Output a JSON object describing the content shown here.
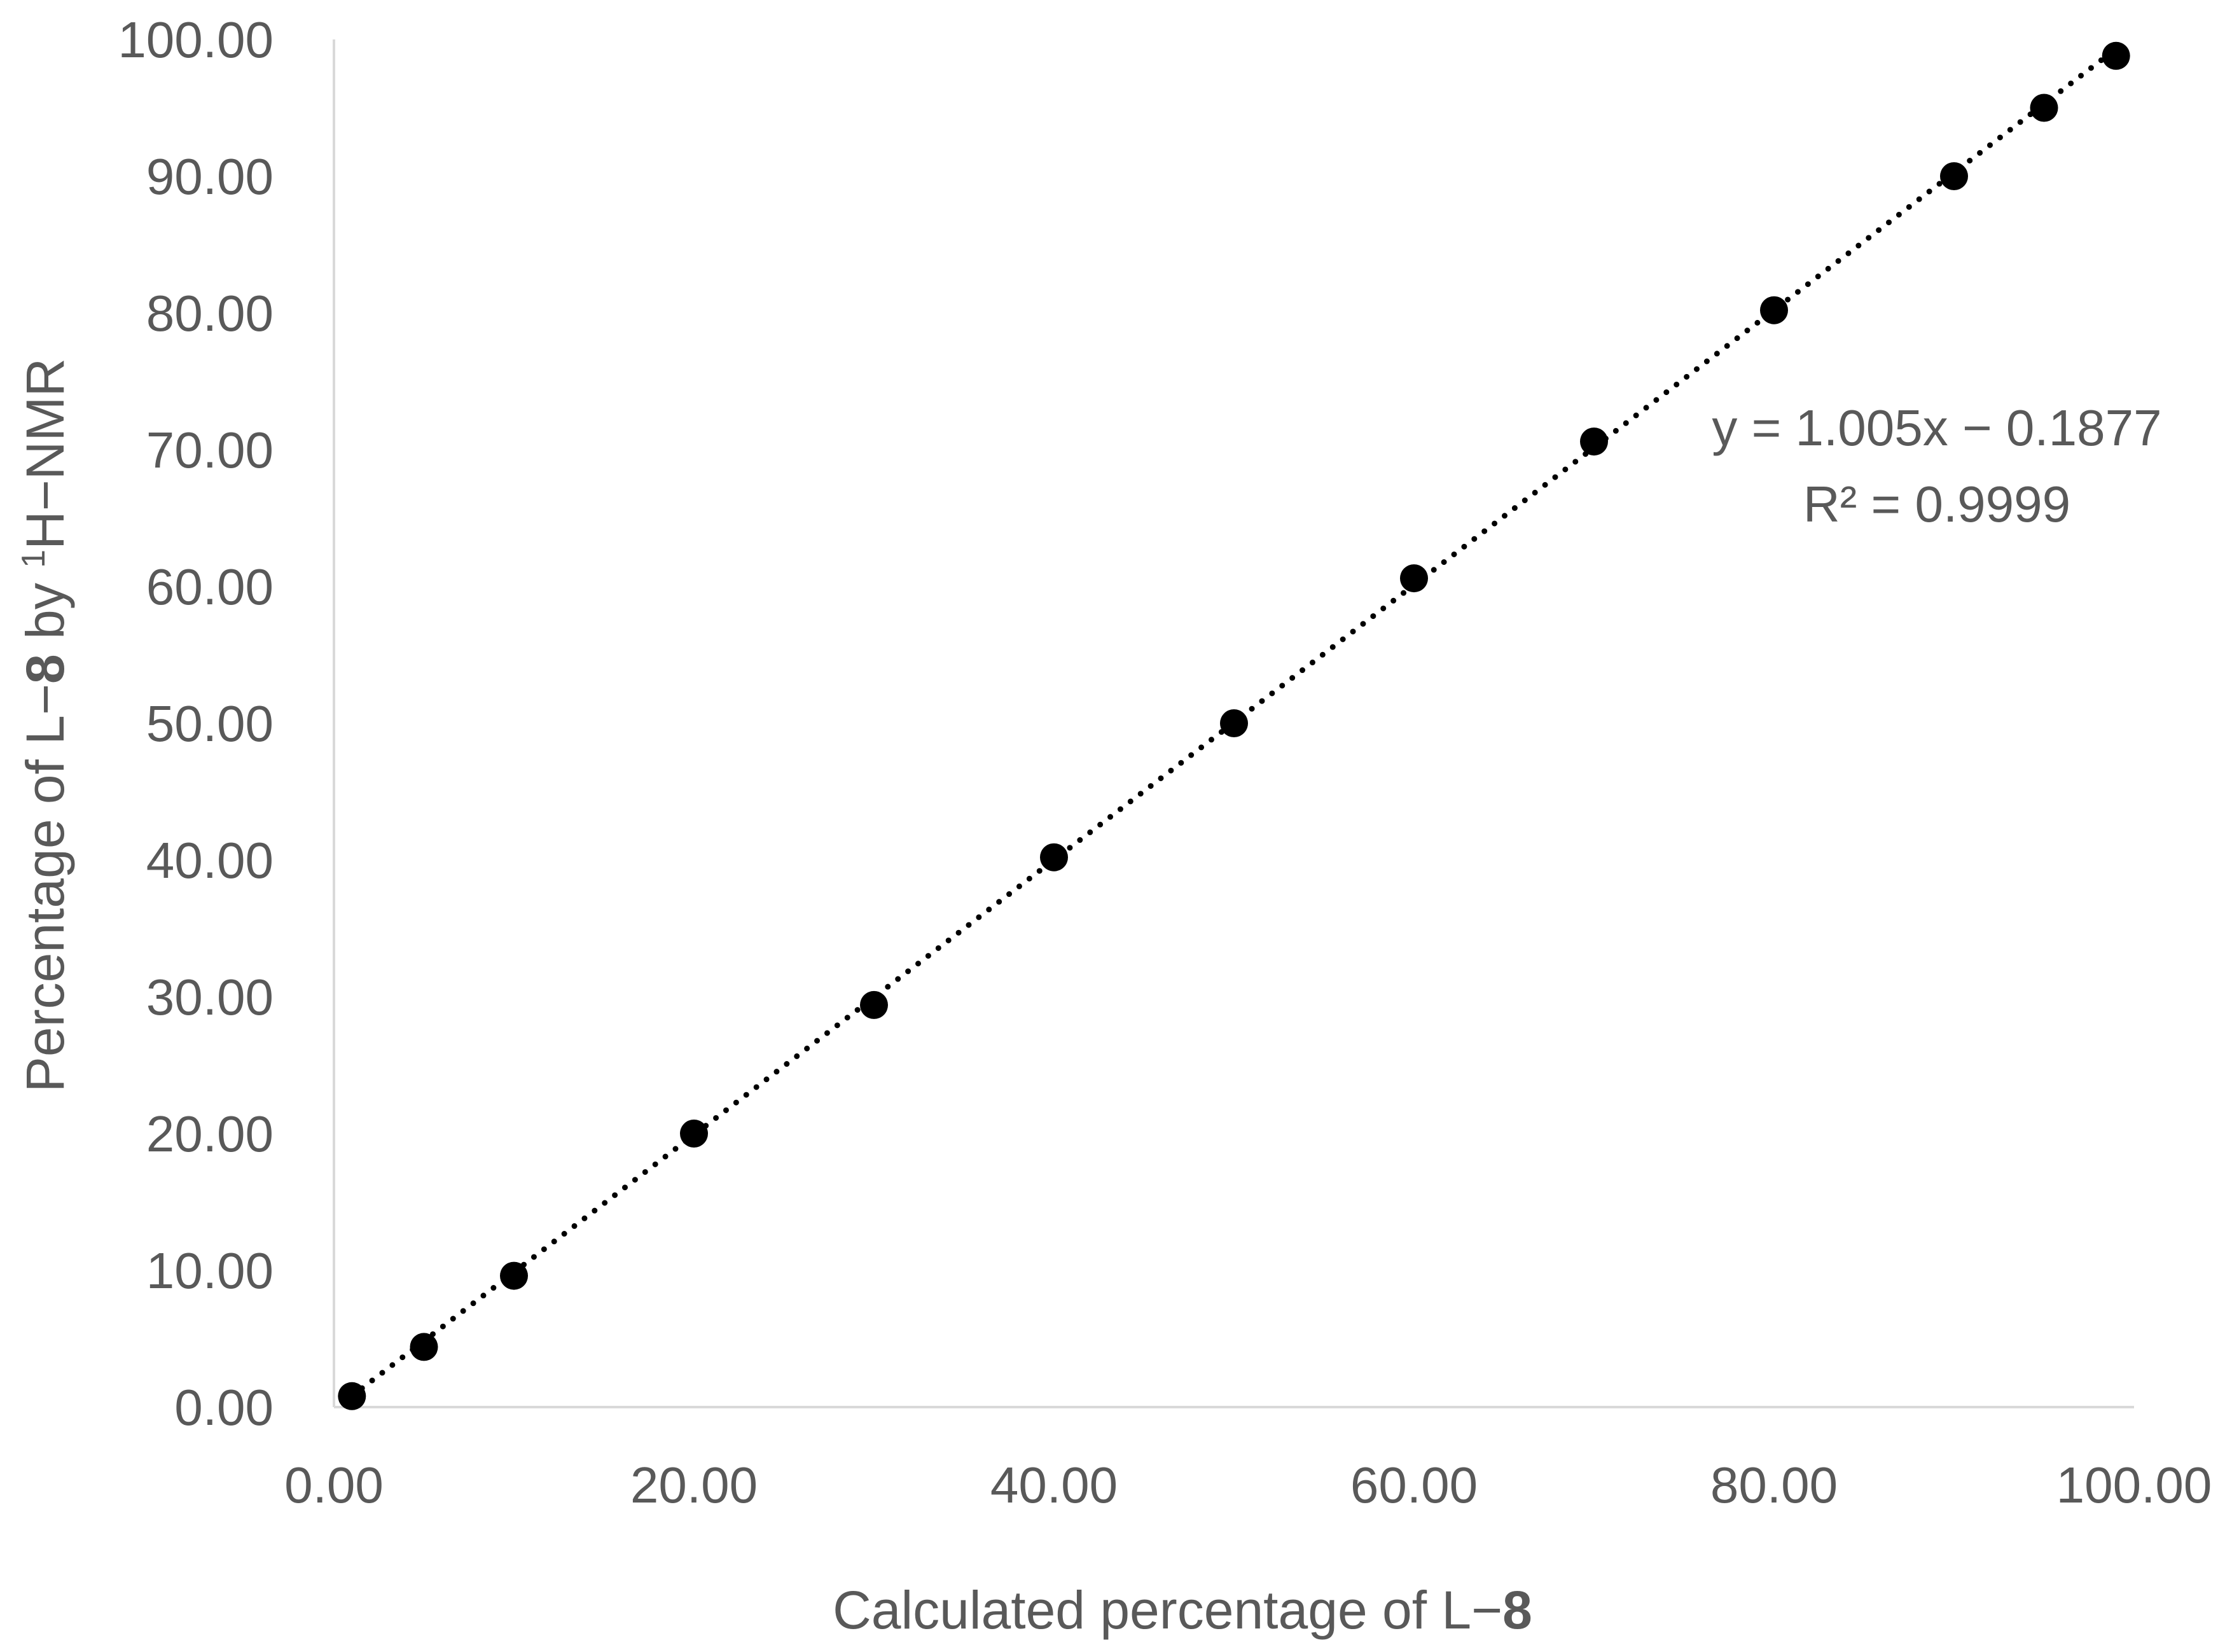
{
  "chart_data": {
    "type": "scatter",
    "title": "",
    "xlabel": {
      "prefix": "Calculated percentage of L−",
      "bold": "8"
    },
    "ylabel": {
      "prefix": "Percentage of L−",
      "bold": "8",
      "middle": " by ",
      "superscript": "1",
      "suffix": "H−NMR"
    },
    "xlim": [
      0,
      100
    ],
    "ylim": [
      0,
      100
    ],
    "x_ticks": [
      "0.00",
      "20.00",
      "40.00",
      "60.00",
      "80.00",
      "100.00"
    ],
    "y_ticks": [
      "0.00",
      "10.00",
      "20.00",
      "30.00",
      "40.00",
      "50.00",
      "60.00",
      "70.00",
      "80.00",
      "90.00",
      "100.00"
    ],
    "grid": false,
    "series": [
      {
        "points": [
          {
            "x": 1.0,
            "y": 0.8
          },
          {
            "x": 5.0,
            "y": 4.4
          },
          {
            "x": 10.0,
            "y": 9.6
          },
          {
            "x": 20.0,
            "y": 20.0
          },
          {
            "x": 30.0,
            "y": 29.4
          },
          {
            "x": 40.0,
            "y": 40.2
          },
          {
            "x": 50.0,
            "y": 50.0
          },
          {
            "x": 60.0,
            "y": 60.6
          },
          {
            "x": 70.0,
            "y": 70.6
          },
          {
            "x": 80.0,
            "y": 80.2
          },
          {
            "x": 90.0,
            "y": 90.0
          },
          {
            "x": 95.0,
            "y": 95.0
          },
          {
            "x": 99.0,
            "y": 98.8
          }
        ],
        "color": "#000000"
      }
    ],
    "trendline": {
      "type": "linear",
      "slope": 1.005,
      "intercept": -0.1877,
      "x_range": [
        1,
        99
      ],
      "style": "dotted",
      "color": "#000000",
      "equation_label": "y = 1.005x − 0.1877",
      "r2_label": "R² = 0.9999"
    },
    "axis_color": "#d9d9d9",
    "text_color": "#595959"
  }
}
